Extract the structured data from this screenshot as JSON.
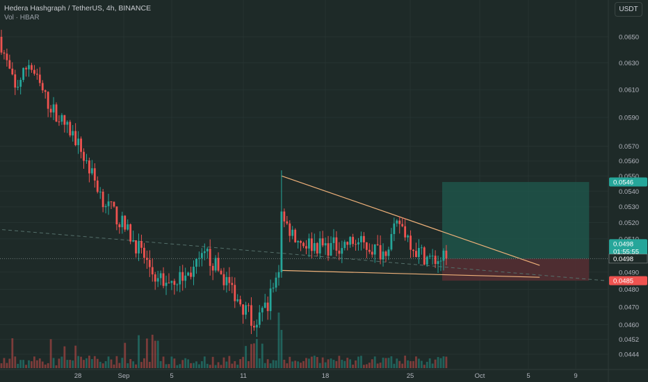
{
  "header": {
    "symbol_line": "Hedera Hashgraph / TetherUS, 4h, BINANCE",
    "volume_line": "Vol · HBAR",
    "currency_button": "USDT"
  },
  "price_labels": {
    "target": "0.0546",
    "current": "0.0498",
    "countdown": "01:55:55",
    "mark": "0.0498",
    "stop": "0.0485"
  },
  "colors": {
    "background": "#1e2a28",
    "up": "#26a69a",
    "down": "#ef5350",
    "trendline": "#f0b27a",
    "target_zone": "#1f5a4e",
    "stop_zone": "#5a2e33"
  },
  "chart_data": {
    "type": "candlestick",
    "title": "Hedera Hashgraph / TetherUS, 4h, BINANCE",
    "y_axis": {
      "scale": "log",
      "ylim": [
        0.044,
        0.0665
      ],
      "ticks": [
        "0.0650",
        "0.0630",
        "0.0610",
        "0.0590",
        "0.0570",
        "0.0560",
        "0.0550",
        "0.0540",
        "0.0530",
        "0.0520",
        "0.0510",
        "0.0490",
        "0.0480",
        "0.0470",
        "0.0460",
        "0.0452",
        "0.0444"
      ]
    },
    "x_axis": {
      "ticks": [
        "28",
        "Sep",
        "5",
        "11",
        "18",
        "25",
        "Oct",
        "5",
        "9"
      ]
    },
    "price_path": [
      {
        "t": 0,
        "p": 0.065
      },
      {
        "t": 6,
        "p": 0.061
      },
      {
        "t": 11,
        "p": 0.063
      },
      {
        "t": 18,
        "p": 0.06
      },
      {
        "t": 28,
        "p": 0.0575
      },
      {
        "t": 38,
        "p": 0.0535
      },
      {
        "t": 48,
        "p": 0.0512
      },
      {
        "t": 58,
        "p": 0.0485
      },
      {
        "t": 68,
        "p": 0.0487
      },
      {
        "t": 76,
        "p": 0.05
      },
      {
        "t": 86,
        "p": 0.0478
      },
      {
        "t": 94,
        "p": 0.0458
      },
      {
        "t": 101,
        "p": 0.0484
      },
      {
        "t": 104,
        "p": 0.052
      },
      {
        "t": 110,
        "p": 0.0508
      },
      {
        "t": 120,
        "p": 0.0505
      },
      {
        "t": 130,
        "p": 0.0508
      },
      {
        "t": 140,
        "p": 0.0502
      },
      {
        "t": 146,
        "p": 0.052
      },
      {
        "t": 152,
        "p": 0.0503
      },
      {
        "t": 158,
        "p": 0.0497
      },
      {
        "t": 162,
        "p": 0.0498
      }
    ],
    "triangle_upper": [
      {
        "t": 102,
        "p": 0.055
      },
      {
        "t": 196,
        "p": 0.0494
      }
    ],
    "triangle_lower": [
      {
        "t": 102,
        "p": 0.0491
      },
      {
        "t": 196,
        "p": 0.0487
      }
    ],
    "dashed_trend": [
      {
        "t": -2,
        "p": 0.0516
      },
      {
        "t": 220,
        "p": 0.0485
      }
    ],
    "position": {
      "entry": 0.0498,
      "target": 0.0546,
      "stop": 0.0485,
      "t_start": 160,
      "t_end": 214
    },
    "current_price": 0.0498
  }
}
